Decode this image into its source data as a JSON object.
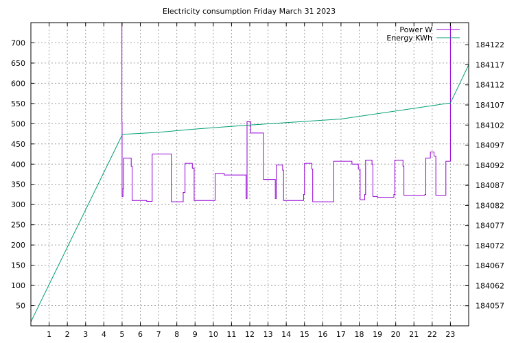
{
  "chart_data": {
    "type": "line",
    "title": "Electricity consumption Friday March 31 2023",
    "xlabel": "",
    "ylabel": "",
    "y2label": "",
    "xlim": [
      0,
      24
    ],
    "ylim": [
      0,
      750
    ],
    "y2lim": [
      184052,
      184127.5
    ],
    "x_ticks": [
      1,
      2,
      3,
      4,
      5,
      6,
      7,
      8,
      9,
      10,
      11,
      12,
      13,
      14,
      15,
      16,
      17,
      18,
      19,
      20,
      21,
      22,
      23
    ],
    "y_ticks": [
      50,
      100,
      150,
      200,
      250,
      300,
      350,
      400,
      450,
      500,
      550,
      600,
      650,
      700
    ],
    "y2_ticks": [
      184057,
      184062,
      184067,
      184072,
      184077,
      184082,
      184087,
      184092,
      184097,
      184102,
      184107,
      184112,
      184117,
      184122
    ],
    "grid": true,
    "legend_position": "top-right",
    "colors": {
      "power": "#9400d3",
      "energy": "#009e73"
    },
    "series": [
      {
        "name": "Power W",
        "axis": "left",
        "points": [
          [
            4.99,
            750
          ],
          [
            4.99,
            505
          ],
          [
            5.0,
            505
          ],
          [
            5.0,
            320
          ],
          [
            5.05,
            320
          ],
          [
            5.05,
            340
          ],
          [
            5.08,
            340
          ],
          [
            5.08,
            415
          ],
          [
            5.5,
            415
          ],
          [
            5.5,
            395
          ],
          [
            5.55,
            395
          ],
          [
            5.55,
            310
          ],
          [
            6.35,
            310
          ],
          [
            6.35,
            308
          ],
          [
            6.65,
            308
          ],
          [
            6.65,
            425
          ],
          [
            7.7,
            425
          ],
          [
            7.7,
            307
          ],
          [
            8.35,
            307
          ],
          [
            8.35,
            330
          ],
          [
            8.45,
            330
          ],
          [
            8.45,
            402
          ],
          [
            8.85,
            402
          ],
          [
            8.85,
            390
          ],
          [
            8.95,
            390
          ],
          [
            8.95,
            310
          ],
          [
            10.1,
            310
          ],
          [
            10.1,
            377
          ],
          [
            10.6,
            377
          ],
          [
            10.6,
            373
          ],
          [
            11.8,
            373
          ],
          [
            11.8,
            315
          ],
          [
            11.85,
            315
          ],
          [
            11.85,
            505
          ],
          [
            12.05,
            505
          ],
          [
            12.05,
            477
          ],
          [
            12.75,
            477
          ],
          [
            12.75,
            362
          ],
          [
            13.4,
            362
          ],
          [
            13.4,
            315
          ],
          [
            13.45,
            315
          ],
          [
            13.45,
            398
          ],
          [
            13.8,
            398
          ],
          [
            13.8,
            385
          ],
          [
            13.85,
            385
          ],
          [
            13.85,
            310
          ],
          [
            14.95,
            310
          ],
          [
            14.95,
            325
          ],
          [
            15.0,
            325
          ],
          [
            15.0,
            402
          ],
          [
            15.4,
            402
          ],
          [
            15.4,
            388
          ],
          [
            15.45,
            388
          ],
          [
            15.45,
            307
          ],
          [
            16.6,
            307
          ],
          [
            16.6,
            407
          ],
          [
            17.6,
            407
          ],
          [
            17.6,
            400
          ],
          [
            17.95,
            400
          ],
          [
            17.95,
            388
          ],
          [
            18.05,
            388
          ],
          [
            18.05,
            312
          ],
          [
            18.3,
            312
          ],
          [
            18.3,
            325
          ],
          [
            18.35,
            325
          ],
          [
            18.35,
            410
          ],
          [
            18.7,
            410
          ],
          [
            18.7,
            400
          ],
          [
            18.75,
            400
          ],
          [
            18.75,
            320
          ],
          [
            19.0,
            320
          ],
          [
            19.0,
            318
          ],
          [
            19.9,
            318
          ],
          [
            19.9,
            325
          ],
          [
            19.95,
            325
          ],
          [
            19.95,
            410
          ],
          [
            20.4,
            410
          ],
          [
            20.4,
            395
          ],
          [
            20.45,
            395
          ],
          [
            20.45,
            323
          ],
          [
            21.6,
            323
          ],
          [
            21.6,
            325
          ],
          [
            21.65,
            325
          ],
          [
            21.65,
            415
          ],
          [
            21.9,
            415
          ],
          [
            21.9,
            430
          ],
          [
            22.1,
            430
          ],
          [
            22.1,
            420
          ],
          [
            22.2,
            420
          ],
          [
            22.2,
            323
          ],
          [
            22.75,
            323
          ],
          [
            22.75,
            407
          ],
          [
            23.0,
            407
          ],
          [
            23.0,
            750
          ]
        ]
      },
      {
        "name": "Energy KWh",
        "axis": "right",
        "points": [
          [
            0,
            184053
          ],
          [
            5.0,
            184099.5
          ],
          [
            5.1,
            184099.7
          ],
          [
            7.0,
            184100.2
          ],
          [
            9.0,
            184101.0
          ],
          [
            12.0,
            184102.0
          ],
          [
            17.0,
            184103.5
          ],
          [
            23.0,
            184107.5
          ],
          [
            24.0,
            184117
          ]
        ]
      }
    ]
  }
}
